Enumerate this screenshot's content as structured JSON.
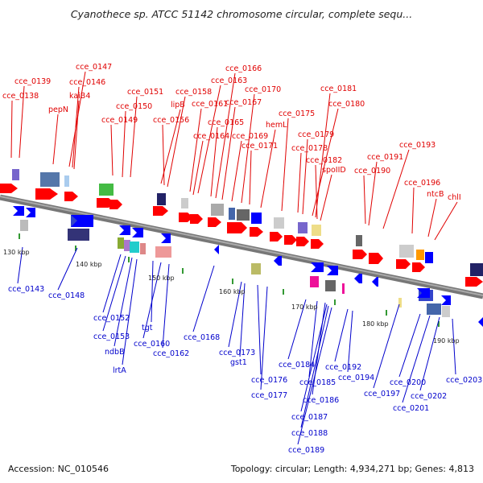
{
  "title": "Cyanothece sp. ATCC 51142 chromosome circular, complete sequ...",
  "footer": {
    "accession": "Accession: NC_010546",
    "topology": "Topology: circular; Length: 4,934,271 bp; Genes: 4,813"
  },
  "colors": {
    "forward_arrow": "#ff0000",
    "reverse_arrow": "#0000ff",
    "forward_label": "#e00000",
    "reverse_label": "#0000cc",
    "backbone": "#999999",
    "tick": "#339933"
  },
  "ruler_ticks": [
    "130 kbp",
    "140 kbp",
    "150 kbp",
    "160 kbp",
    "170 kbp",
    "180 kbp",
    "190 kbp"
  ],
  "forward_genes": [
    "cce_0138",
    "cce_0139",
    "pepN",
    "cce_0147",
    "cce_0146",
    "kaiB4",
    "cce_0149",
    "cce_0150",
    "cce_0151",
    "lipB",
    "cce_0156",
    "cce_0158",
    "cce_0161",
    "cce_0163",
    "cce_0164",
    "cce_0165",
    "cce_0166",
    "cce_0167",
    "cce_0169",
    "cce_0170",
    "cce_0171",
    "hemL",
    "cce_0175",
    "cce_0178",
    "cce_0179",
    "cce_0180",
    "cce_0181",
    "cce_0182",
    "spoIID",
    "cce_0190",
    "cce_0191",
    "cce_0193",
    "cce_0196",
    "ntcB",
    "chlI"
  ],
  "reverse_genes": [
    "cce_0143",
    "cce_0148",
    "cce_0152",
    "cce_0153",
    "ndbB",
    "lrtA",
    "tgt",
    "cce_0160",
    "cce_0162",
    "cce_0168",
    "cce_0173",
    "gst1",
    "cce_0176",
    "cce_0177",
    "cce_0184",
    "cce_0185",
    "cce_0186",
    "cce_0187",
    "cce_0188",
    "cce_0189",
    "cce_0192",
    "cce_0194",
    "cce_0197",
    "cce_0200",
    "cce_0201",
    "cce_0202",
    "cce_0203"
  ]
}
